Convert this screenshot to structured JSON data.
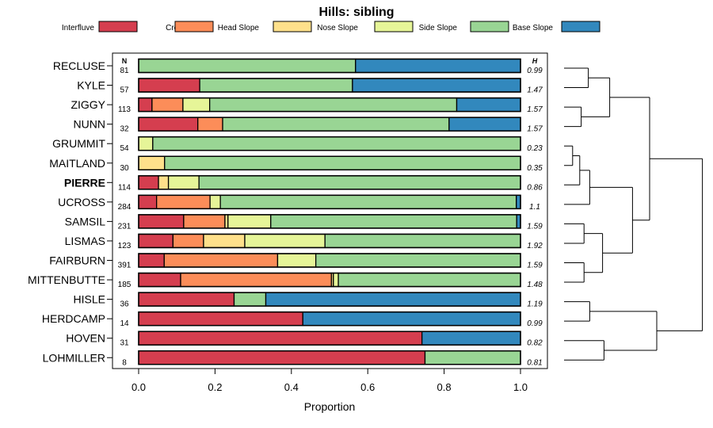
{
  "chart_data": {
    "type": "bar",
    "orientation": "horizontal",
    "stacked": true,
    "title": "Hills: sibling",
    "xlabel": "Proportion",
    "ylabel": "",
    "xlim": [
      0,
      1
    ],
    "x_ticks": [
      "0.0",
      "0.2",
      "0.4",
      "0.6",
      "0.8",
      "1.0"
    ],
    "x_tick_values": [
      0,
      0.2,
      0.4,
      0.6,
      0.8,
      1.0
    ],
    "n_header": "N",
    "h_header": "H",
    "highlight": "PIERRE",
    "legend_position": "top",
    "series": [
      {
        "name": "Interfluve",
        "color": "#d53e4f",
        "values": [
          0,
          0.16,
          0.035,
          0.155,
          0,
          0,
          0.052,
          0.047,
          0.118,
          0.09,
          0.067,
          0.11,
          0.25,
          0.43,
          0.742,
          0.75
        ]
      },
      {
        "name": "Crest",
        "color": "#fc8d59",
        "values": [
          0,
          0,
          0.081,
          0.065,
          0,
          0,
          0,
          0.14,
          0.108,
          0.08,
          0.297,
          0.395,
          0,
          0,
          0,
          0
        ]
      },
      {
        "name": "Head Slope",
        "color": "#fee08b",
        "values": [
          0,
          0,
          0,
          0,
          0,
          0.068,
          0.026,
          0,
          0.008,
          0.108,
          0,
          0.005,
          0,
          0,
          0,
          0
        ]
      },
      {
        "name": "Nose Slope",
        "color": "#e6f598",
        "values": [
          0,
          0,
          0.07,
          0,
          0.037,
          0,
          0.08,
          0.027,
          0.112,
          0.21,
          0.1,
          0.013,
          0,
          0,
          0,
          0
        ]
      },
      {
        "name": "Side Slope",
        "color": "#99d594",
        "values": [
          0.568,
          0.4,
          0.647,
          0.593,
          0.963,
          0.932,
          0.842,
          0.775,
          0.644,
          0.512,
          0.536,
          0.477,
          0.083,
          0,
          0,
          0.25
        ]
      },
      {
        "name": "Base Slope",
        "color": "#3288bd",
        "values": [
          0.432,
          0.44,
          0.167,
          0.187,
          0,
          0,
          0,
          0.011,
          0.01,
          0,
          0,
          0,
          0.667,
          0.57,
          0.258,
          0
        ]
      }
    ],
    "rows": [
      {
        "name": "RECLUSE",
        "n": "81",
        "h": "0.99"
      },
      {
        "name": "KYLE",
        "n": "57",
        "h": "1.47"
      },
      {
        "name": "ZIGGY",
        "n": "113",
        "h": "1.57"
      },
      {
        "name": "NUNN",
        "n": "32",
        "h": "1.57"
      },
      {
        "name": "GRUMMIT",
        "n": "54",
        "h": "0.23"
      },
      {
        "name": "MAITLAND",
        "n": "30",
        "h": "0.35"
      },
      {
        "name": "PIERRE",
        "n": "114",
        "h": "0.86"
      },
      {
        "name": "UCROSS",
        "n": "284",
        "h": "1.1"
      },
      {
        "name": "SAMSIL",
        "n": "231",
        "h": "1.59"
      },
      {
        "name": "LISMAS",
        "n": "123",
        "h": "1.92"
      },
      {
        "name": "FAIRBURN",
        "n": "391",
        "h": "1.59"
      },
      {
        "name": "MITTENBUTTE",
        "n": "185",
        "h": "1.48"
      },
      {
        "name": "HISLE",
        "n": "36",
        "h": "1.19"
      },
      {
        "name": "HERDCAMP",
        "n": "14",
        "h": "0.99"
      },
      {
        "name": "HOVEN",
        "n": "31",
        "h": "0.82"
      },
      {
        "name": "LOHMILLER",
        "n": "8",
        "h": "0.81"
      }
    ],
    "dendrogram": {
      "type": "hierarchical-clustering",
      "leaf_order": [
        "RECLUSE",
        "KYLE",
        "ZIGGY",
        "NUNN",
        "GRUMMIT",
        "MAITLAND",
        "PIERRE",
        "UCROSS",
        "SAMSIL",
        "LISMAS",
        "FAIRBURN",
        "MITTENBUTTE",
        "HISLE",
        "HERDCAMP",
        "HOVEN",
        "LOHMILLER"
      ],
      "merge_heights": {
        "RECLUSE+KYLE": 0.17,
        "ZIGGY+NUNN": 0.12,
        "RECLUSE-NUNN": 0.32,
        "GRUMMIT+MAITLAND": 0.06,
        "GRUMMIT-PIERRE": 0.11,
        "GRUMMIT-UCROSS": 0.18,
        "SAMSIL+LISMAS": 0.14,
        "FAIRBURN+MITTENBUTTE": 0.14,
        "SAMSIL-MITTENBUTTE": 0.27,
        "GRUMMIT-MITTENBUTTE": 0.48,
        "RECLUSE-MITTENBUTTE": 0.6,
        "HISLE+HERDCAMP": 0.18,
        "HOVEN+LOHMILLER": 0.28,
        "HISLE-LOHMILLER": 0.65,
        "all": 0.97
      }
    }
  }
}
